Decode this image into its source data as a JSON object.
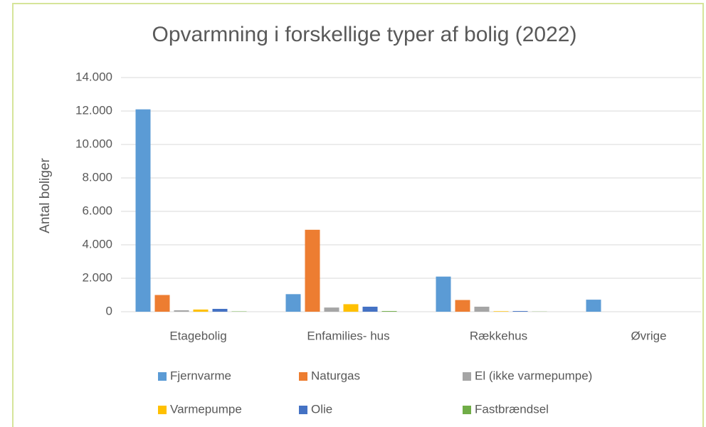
{
  "chart_data": {
    "type": "bar",
    "title": "Opvarmning i forskellige typer af bolig (2022)",
    "y_label": "Antal boliger",
    "categories": [
      "Etagebolig",
      "Enfamilies- hus",
      "Rækkehus",
      "Øvrige"
    ],
    "series": [
      {
        "name": "Fjernvarme",
        "color": "#5b9bd5",
        "values": [
          12100,
          1050,
          2100,
          720
        ]
      },
      {
        "name": "Naturgas",
        "color": "#ed7d31",
        "values": [
          1000,
          4900,
          700,
          0
        ]
      },
      {
        "name": "El (ikke varmepumpe)",
        "color": "#a5a5a5",
        "values": [
          85,
          250,
          300,
          0
        ]
      },
      {
        "name": "Varmepumpe",
        "color": "#ffc000",
        "values": [
          130,
          450,
          30,
          0
        ]
      },
      {
        "name": "Olie",
        "color": "#4472c4",
        "values": [
          170,
          300,
          40,
          0
        ]
      },
      {
        "name": "Fastbrændsel",
        "color": "#70ad47",
        "values": [
          20,
          40,
          10,
          0
        ]
      }
    ],
    "ylim": [
      0,
      14000
    ],
    "yticks": [
      0,
      {
        "value": 2000,
        "label": "2.000"
      },
      {
        "value": 4000,
        "label": "4.000"
      },
      {
        "value": 6000,
        "label": "6.000"
      },
      {
        "value": 8000,
        "label": "8.000"
      },
      {
        "value": 10000,
        "label": "10.000"
      },
      {
        "value": 12000,
        "label": "12.000"
      },
      {
        "value": 14000,
        "label": "14.000"
      }
    ],
    "grid": true,
    "legend": "bottom"
  }
}
